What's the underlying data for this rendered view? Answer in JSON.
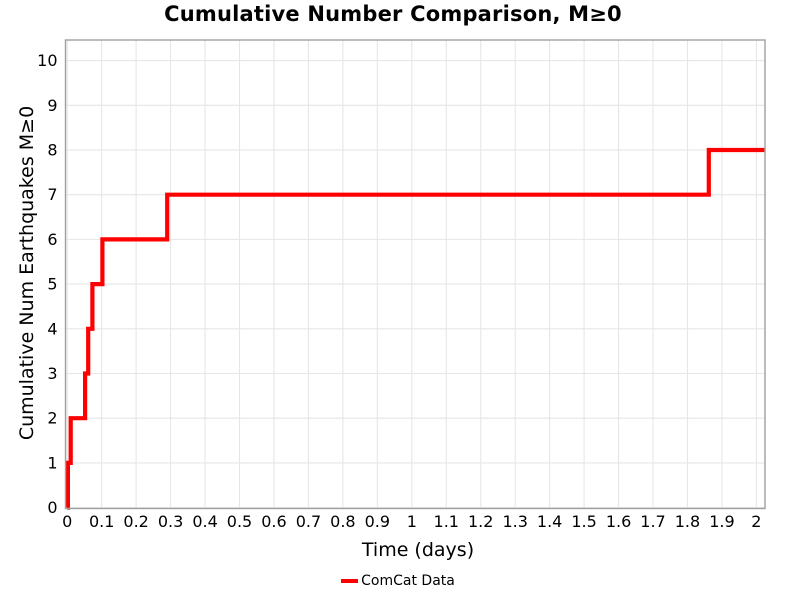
{
  "chart_data": {
    "type": "line",
    "subtype": "cumulative-step",
    "title": "Cumulative Number Comparison, M≥0",
    "xlabel": "Time (days)",
    "ylabel": "Cumulative Num Earthquakes M≥0",
    "legend": [
      {
        "label": "ComCat Data",
        "color": "#ff0000"
      }
    ],
    "legend_position": "bottom-center",
    "grid": true,
    "xlim": [
      -0.005,
      2.025
    ],
    "ylim": [
      -0.02,
      10.46
    ],
    "x_ticks": [
      {
        "v": 0.0,
        "label": "0"
      },
      {
        "v": 0.1,
        "label": "0.1"
      },
      {
        "v": 0.2,
        "label": "0.2"
      },
      {
        "v": 0.3,
        "label": "0.3"
      },
      {
        "v": 0.4,
        "label": "0.4"
      },
      {
        "v": 0.5,
        "label": "0.5"
      },
      {
        "v": 0.6,
        "label": "0.6"
      },
      {
        "v": 0.7,
        "label": "0.7"
      },
      {
        "v": 0.8,
        "label": "0.8"
      },
      {
        "v": 0.9,
        "label": "0.9"
      },
      {
        "v": 1.0,
        "label": "1"
      },
      {
        "v": 1.1,
        "label": "1.1"
      },
      {
        "v": 1.2,
        "label": "1.2"
      },
      {
        "v": 1.3,
        "label": "1.3"
      },
      {
        "v": 1.4,
        "label": "1.4"
      },
      {
        "v": 1.5,
        "label": "1.5"
      },
      {
        "v": 1.6,
        "label": "1.6"
      },
      {
        "v": 1.7,
        "label": "1.7"
      },
      {
        "v": 1.8,
        "label": "1.8"
      },
      {
        "v": 1.9,
        "label": "1.9"
      },
      {
        "v": 2.0,
        "label": "2"
      }
    ],
    "y_ticks": [
      {
        "v": 0,
        "label": "0"
      },
      {
        "v": 1,
        "label": "1"
      },
      {
        "v": 2,
        "label": "2"
      },
      {
        "v": 3,
        "label": "3"
      },
      {
        "v": 4,
        "label": "4"
      },
      {
        "v": 5,
        "label": "5"
      },
      {
        "v": 6,
        "label": "6"
      },
      {
        "v": 7,
        "label": "7"
      },
      {
        "v": 8,
        "label": "8"
      },
      {
        "v": 9,
        "label": "9"
      },
      {
        "v": 10,
        "label": "10"
      }
    ],
    "series": [
      {
        "name": "ComCat Data",
        "color": "#ff0000",
        "line_width": 4.2,
        "step": "post",
        "start": [
          0,
          0
        ],
        "events": [
          {
            "t": 0.002,
            "cum": 1
          },
          {
            "t": 0.01,
            "cum": 2
          },
          {
            "t": 0.052,
            "cum": 3
          },
          {
            "t": 0.061,
            "cum": 4
          },
          {
            "t": 0.073,
            "cum": 5
          },
          {
            "t": 0.102,
            "cum": 6
          },
          {
            "t": 0.29,
            "cum": 7
          },
          {
            "t": 1.862,
            "cum": 8
          }
        ],
        "t_end": 2.025
      }
    ],
    "colors": {
      "line": "#ff0000",
      "grid": "#e6e6e6",
      "spine": "#a0a0a0",
      "text": "#000000",
      "background": "#ffffff"
    }
  }
}
